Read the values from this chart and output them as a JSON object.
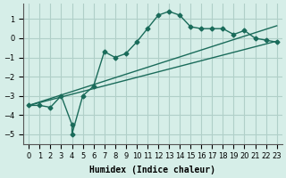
{
  "xlabel": "Humidex (Indice chaleur)",
  "ylabel": "",
  "bg_color": "#d6eee8",
  "grid_color": "#b0cfc8",
  "line_color": "#1a6b5a",
  "xlim": [
    -0.5,
    23.5
  ],
  "ylim": [
    -5.5,
    1.8
  ],
  "xticks": [
    0,
    1,
    2,
    3,
    4,
    5,
    6,
    7,
    8,
    9,
    10,
    11,
    12,
    13,
    14,
    15,
    16,
    17,
    18,
    19,
    20,
    21,
    22,
    23
  ],
  "yticks": [
    -5,
    -4,
    -3,
    -2,
    -1,
    0,
    1
  ],
  "curve1_x": [
    0,
    1,
    2,
    3,
    4,
    4,
    5,
    6,
    7,
    8,
    9,
    10,
    11,
    12,
    13,
    14,
    15,
    16,
    17,
    18,
    19,
    20,
    21,
    22,
    23
  ],
  "curve1_y": [
    -3.5,
    -3.5,
    -3.6,
    -3.0,
    -4.5,
    -5.0,
    -3.0,
    -2.5,
    -0.7,
    -1.0,
    -0.8,
    -0.2,
    0.5,
    1.2,
    1.4,
    1.2,
    0.6,
    0.5,
    0.5,
    0.5,
    0.2,
    0.4,
    0.0,
    -0.1,
    -0.2
  ],
  "curve2_x": [
    0,
    23
  ],
  "curve2_y": [
    -3.5,
    -0.15
  ],
  "curve3_x": [
    0,
    23
  ],
  "curve3_y": [
    -3.5,
    0.65
  ],
  "figsize": [
    3.2,
    2.0
  ],
  "dpi": 100
}
